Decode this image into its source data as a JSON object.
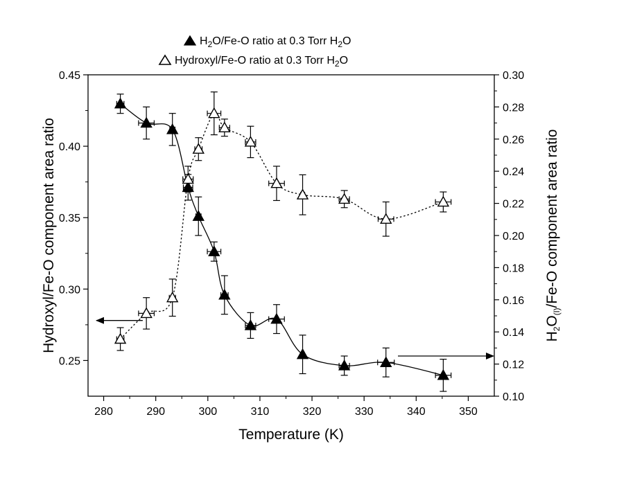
{
  "chart_data": {
    "type": "scatter",
    "xlabel": "Temperature (K)",
    "ylabel_left": "Hydroxyl/Fe-O component area ratio",
    "ylabel_right": {
      "pre": "H",
      "sub1": "2",
      "mid": "O",
      "sub2": "(l)",
      "post": "/Fe-O component area ratio"
    },
    "xlim": [
      277,
      355
    ],
    "ylim_left": [
      0.225,
      0.45
    ],
    "ylim_right": [
      0.1,
      0.3
    ],
    "x_ticks": [
      280,
      290,
      300,
      310,
      320,
      330,
      340,
      350
    ],
    "y_left_ticks": [
      "0.25",
      "0.30",
      "0.35",
      "0.40",
      "0.45"
    ],
    "y_right_ticks": [
      "0.10",
      "0.12",
      "0.14",
      "0.16",
      "0.18",
      "0.20",
      "0.22",
      "0.24",
      "0.26",
      "0.28",
      "0.30"
    ],
    "legend": [
      {
        "marker": "filled-triangle",
        "pre": "H",
        "sub": "2",
        "post": "O/Fe-O ratio at 0.3 Torr H",
        "sub2": "2",
        "post2": "O"
      },
      {
        "marker": "open-triangle",
        "pre": "Hydroxyl/Fe-O ratio at 0.3 Torr H",
        "sub": "2",
        "post": "O"
      }
    ],
    "series": [
      {
        "axis": "right",
        "marker": "filled-triangle",
        "line": "solid",
        "x": [
          283.2,
          288.2,
          293.2,
          296.2,
          298.2,
          301.2,
          303.2,
          308.2,
          313.2,
          318.2,
          326.2,
          334.2,
          345.2
        ],
        "y": [
          0.282,
          0.27,
          0.266,
          0.23,
          0.212,
          0.19,
          0.163,
          0.144,
          0.148,
          0.126,
          0.119,
          0.121,
          0.113
        ],
        "yerr": [
          0.006,
          0.01,
          0.01,
          0.008,
          0.012,
          0.006,
          0.012,
          0.008,
          0.009,
          0.012,
          0.006,
          0.009,
          0.01
        ],
        "xerr": [
          0.7,
          1.5,
          0.5,
          0.9,
          0.5,
          1.3,
          0.7,
          1.0,
          1.5,
          0.3,
          1.0,
          1.6,
          1.5
        ]
      },
      {
        "axis": "left",
        "marker": "open-triangle",
        "line": "dotted",
        "x": [
          283.2,
          288.2,
          293.2,
          296.2,
          298.2,
          301.2,
          303.2,
          308.2,
          313.2,
          318.2,
          326.2,
          334.2,
          345.2
        ],
        "y": [
          0.265,
          0.283,
          0.294,
          0.377,
          0.398,
          0.423,
          0.413,
          0.403,
          0.374,
          0.366,
          0.363,
          0.349,
          0.361
        ],
        "yerr": [
          0.008,
          0.011,
          0.013,
          0.009,
          0.008,
          0.015,
          0.006,
          0.011,
          0.012,
          0.014,
          0.006,
          0.012,
          0.007
        ],
        "xerr": [
          0.7,
          1.5,
          0.6,
          1.0,
          0.7,
          1.3,
          1.0,
          1.0,
          1.5,
          0.4,
          1.0,
          1.5,
          1.5
        ]
      }
    ],
    "annotations": [
      {
        "type": "arrow",
        "direction": "left",
        "points_to_axis": "left",
        "at_y": 0.278
      },
      {
        "type": "arrow",
        "direction": "right",
        "points_to_axis": "right",
        "at_y": 0.125
      }
    ]
  }
}
